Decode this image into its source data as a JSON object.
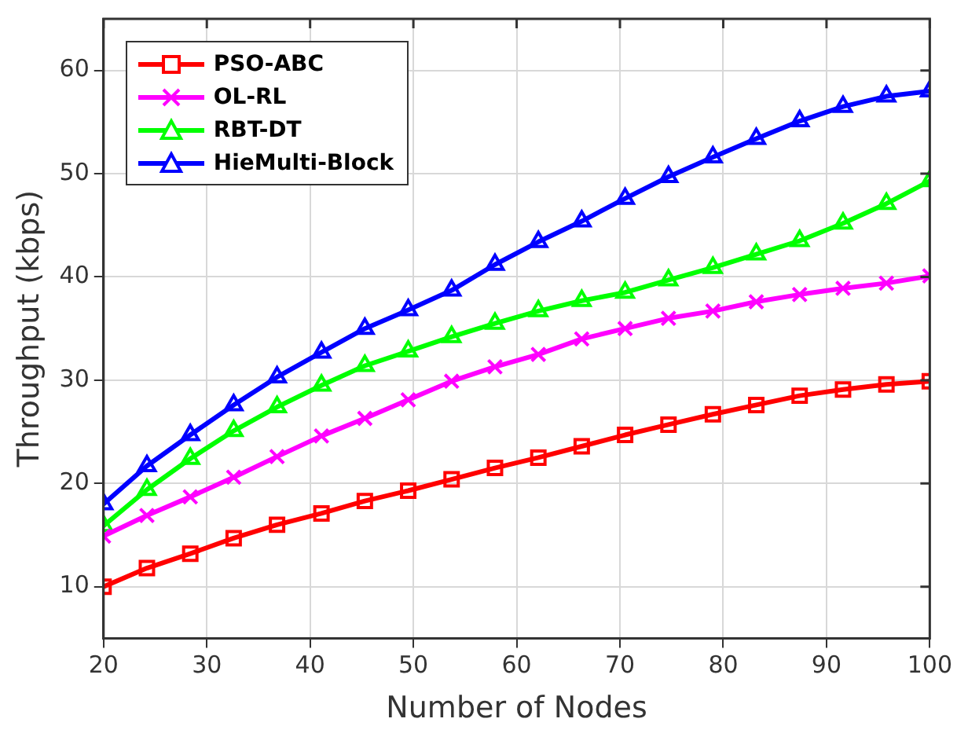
{
  "chart_data": {
    "type": "line",
    "xlabel": "Number of Nodes",
    "ylabel": "Throughput (kbps)",
    "x": [
      20,
      24.2,
      28.4,
      32.6,
      36.8,
      41.1,
      45.3,
      49.5,
      53.7,
      57.9,
      62.1,
      66.3,
      70.5,
      74.7,
      79.0,
      83.2,
      87.4,
      91.6,
      95.8,
      100
    ],
    "xlim": [
      20,
      100
    ],
    "xticks": [
      20,
      30,
      40,
      50,
      60,
      70,
      80,
      90,
      100
    ],
    "ylim": [
      5,
      65
    ],
    "yticks": [
      10,
      20,
      30,
      40,
      50,
      60
    ],
    "grid": true,
    "legend": "top left",
    "line_style": "solid",
    "series": [
      {
        "name": "PSO-ABC",
        "color": "#ff0000",
        "marker": "square",
        "values": [
          10.0,
          11.8,
          13.2,
          14.7,
          16.0,
          17.1,
          18.3,
          19.3,
          20.4,
          21.5,
          22.5,
          23.6,
          24.7,
          25.7,
          26.7,
          27.6,
          28.5,
          29.1,
          29.6,
          29.9
        ]
      },
      {
        "name": "OL-RL",
        "color": "#ff00ff",
        "marker": "cross",
        "values": [
          14.9,
          16.9,
          18.7,
          20.6,
          22.6,
          24.6,
          26.3,
          28.1,
          29.9,
          31.3,
          32.5,
          34.0,
          35.0,
          36.0,
          36.7,
          37.6,
          38.3,
          38.9,
          39.4,
          40.1
        ]
      },
      {
        "name": "RBT-DT",
        "color": "#00ff00",
        "marker": "triangle",
        "values": [
          15.9,
          19.4,
          22.4,
          25.1,
          27.4,
          29.5,
          31.4,
          32.8,
          34.2,
          35.5,
          36.7,
          37.7,
          38.5,
          39.7,
          40.9,
          42.2,
          43.5,
          45.2,
          47.1,
          49.3
        ]
      },
      {
        "name": "HieMulti-Block",
        "color": "#0000ff",
        "marker": "triangle",
        "values": [
          18.0,
          21.7,
          24.7,
          27.6,
          30.3,
          32.7,
          35.0,
          36.8,
          38.7,
          41.2,
          43.4,
          45.4,
          47.6,
          49.7,
          51.6,
          53.4,
          55.1,
          56.5,
          57.5,
          58.0
        ]
      }
    ]
  }
}
